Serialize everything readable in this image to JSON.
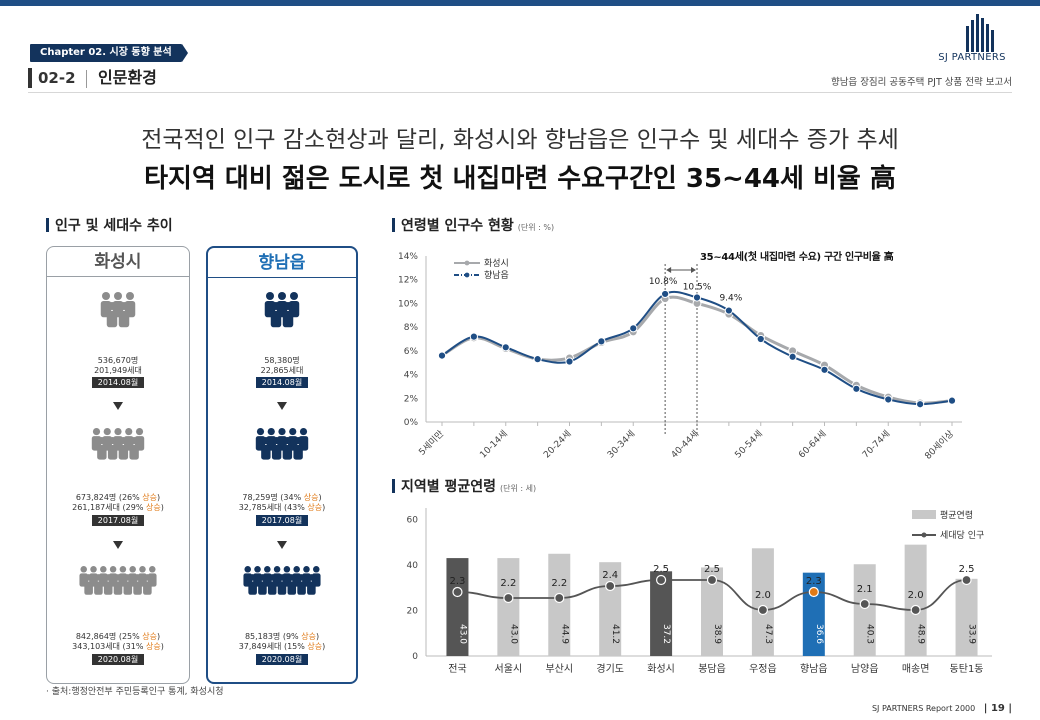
{
  "header": {
    "chapter": "Chapter 02. 시장 동향 분석",
    "section_number": "02-2",
    "section_title": "인문환경",
    "company": "SJ PARTNERS",
    "report_title": "향남읍 장짐리 공동주택 PJT 상품 전략 보고서"
  },
  "headline": {
    "line1": "전국적인 인구 감소현상과 달리, 화성시와 향남읍은 인구수 및 세대수 증가 추세",
    "line2": "타지역 대비 젊은 도시로 첫 내집마련 수요구간인 35~44세 비율 高"
  },
  "population": {
    "block_title": "인구 및 세대수 추이",
    "panels": [
      {
        "name": "화성시",
        "stages": [
          {
            "line1": "536,670명",
            "line2": "201,949세대",
            "date": "2014.08월"
          },
          {
            "line1_main": "673,824명 (26%",
            "line1_up": "상승",
            "line1_end": ")",
            "line2_main": "261,187세대 (29%",
            "line2_up": "상승",
            "line2_end": ")",
            "date": "2017.08월"
          },
          {
            "line1_main": "842,864명 (25%",
            "line1_up": "상승",
            "line1_end": ")",
            "line2_main": "343,103세대 (31%",
            "line2_up": "상승",
            "line2_end": ")",
            "date": "2020.08월"
          }
        ]
      },
      {
        "name": "향남읍",
        "stages": [
          {
            "line1": "58,380명",
            "line2": "22,865세대",
            "date": "2014.08월"
          },
          {
            "line1_main": "78,259명 (34%",
            "line1_up": "상승",
            "line1_end": ")",
            "line2_main": "32,785세대 (43%",
            "line2_up": "상승",
            "line2_end": ")",
            "date": "2017.08월"
          },
          {
            "line1_main": "85,183명 (9%",
            "line1_up": "상승",
            "line1_end": ")",
            "line2_main": "37,849세대 (15%",
            "line2_up": "상승",
            "line2_end": ")",
            "date": "2020.08월"
          }
        ]
      }
    ]
  },
  "colors": {
    "navy": "#13335c",
    "blue": "#1f6fb5",
    "gray": "#8c8c8c",
    "orange": "#e07a17"
  },
  "chart_data": [
    {
      "type": "line",
      "title": "연령별 인구수 현황",
      "unit": "(단위 : %)",
      "categories": [
        "5세미만",
        "5-9세",
        "10-14세",
        "15-19세",
        "20-24세",
        "25-29세",
        "30-34세",
        "35-39세",
        "40-44세",
        "45-49세",
        "50-54세",
        "55-59세",
        "60-64세",
        "65-69세",
        "70-74세",
        "75-79세",
        "80세이상"
      ],
      "visible_tick_labels": [
        "5세미만",
        "10-14세",
        "20-24세",
        "30-34세",
        "40-44세",
        "50-54세",
        "60-64세",
        "70-74세",
        "80세이상"
      ],
      "yticks": [
        "0%",
        "2%",
        "4%",
        "6%",
        "8%",
        "10%",
        "12%",
        "14%"
      ],
      "ylim": [
        0,
        14
      ],
      "series": [
        {
          "name": "화성시",
          "color": "#a7a9ac",
          "values": [
            5.6,
            7.1,
            6.2,
            5.3,
            5.4,
            6.7,
            7.6,
            10.4,
            10.0,
            9.1,
            7.3,
            6.0,
            4.8,
            3.1,
            2.1,
            1.6,
            1.8
          ]
        },
        {
          "name": "향남읍",
          "color": "#1f4e85",
          "values": [
            5.6,
            7.2,
            6.3,
            5.3,
            5.1,
            6.8,
            7.9,
            10.8,
            10.5,
            9.4,
            7.0,
            5.5,
            4.4,
            2.8,
            1.9,
            1.5,
            1.8
          ]
        }
      ],
      "annotations": {
        "callout": "35~44세(첫 내집마련 수요) 구간 인구비율 高",
        "labels": [
          "10.8%",
          "10.5%",
          "9.4%"
        ]
      }
    },
    {
      "type": "bar",
      "title": "지역별 평균연령",
      "unit": "(단위 : 세)",
      "categories": [
        "전국",
        "서울시",
        "부산시",
        "경기도",
        "화성시",
        "봉담읍",
        "우정읍",
        "향남읍",
        "남양읍",
        "매송면",
        "동탄1동"
      ],
      "yticks": [
        "0",
        "20",
        "40",
        "60"
      ],
      "ylim": [
        0,
        65
      ],
      "series": [
        {
          "name": "평균연령",
          "values": [
            43.0,
            43.0,
            44.9,
            41.2,
            37.2,
            38.9,
            47.3,
            36.6,
            40.3,
            48.9,
            33.9
          ],
          "labels": [
            "43.0",
            "43.0",
            "44.9",
            "41.2",
            "37.2",
            "38.9",
            "47.3",
            "36.6",
            "40.3",
            "48.9",
            "33.9"
          ]
        },
        {
          "name": "세대당 인구",
          "values": [
            2.3,
            2.2,
            2.2,
            2.4,
            2.5,
            2.5,
            2.0,
            2.3,
            2.1,
            2.0,
            2.5
          ],
          "labels": [
            "2.3",
            "2.2",
            "2.2",
            "2.4",
            "2.5",
            "2.5",
            "2.0",
            "2.3",
            "2.1",
            "2.0",
            "2.5"
          ]
        }
      ],
      "bar_colors": {
        "default": "#c8c8c8",
        "dark": "#555555",
        "highlight": "#1f6fb5"
      },
      "dark_bars": [
        "전국",
        "화성시"
      ],
      "highlight_bar": "향남읍"
    }
  ],
  "source": "· 출처:행정안전부 주민등록인구 통계, 화성시청",
  "footer": {
    "report": "SJ PARTNERS Report 2000",
    "page": "19"
  }
}
